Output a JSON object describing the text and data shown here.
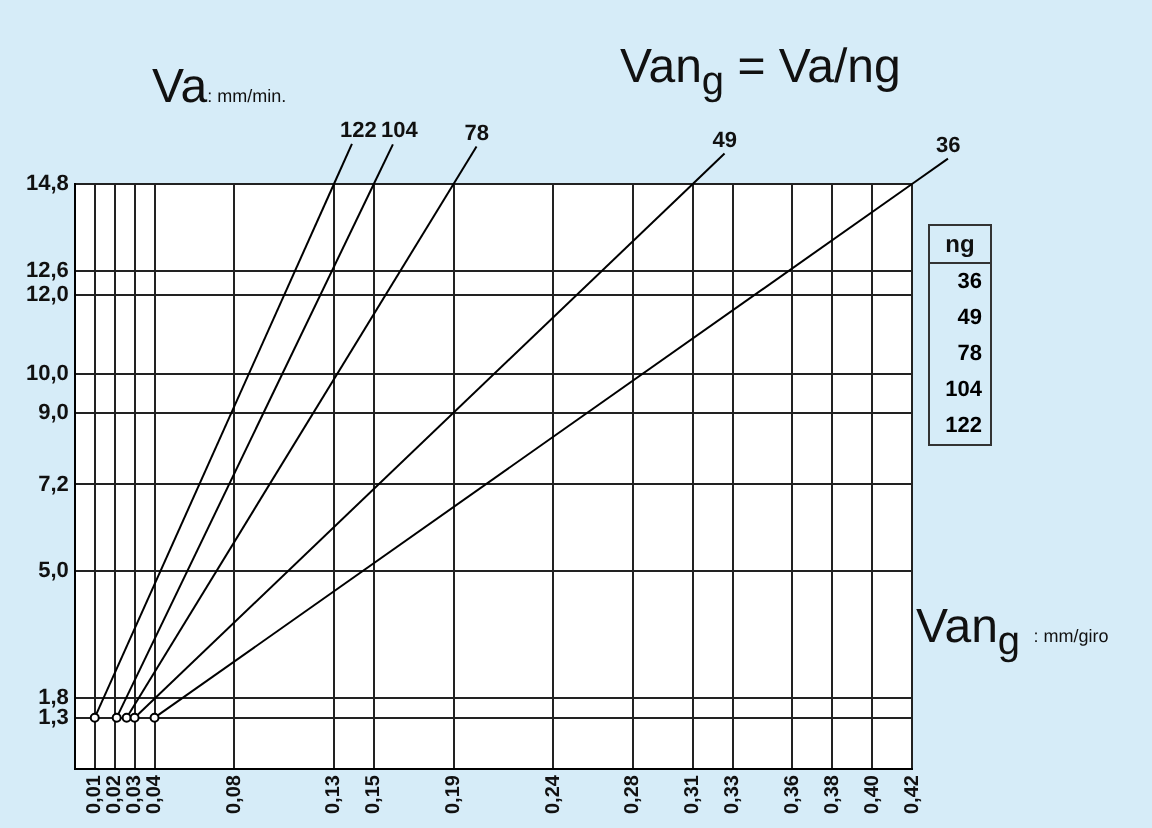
{
  "chart_data": {
    "type": "line",
    "title": "Van$_{g}$ = Va/ng",
    "xlabel": "Van$_{g}$ : mm/giro",
    "ylabel": "Va: mm/min.",
    "legend_title": "ng",
    "legend": "right",
    "grid": true,
    "marker": "circle",
    "line_style": "solid",
    "xlim": [
      0,
      0.42
    ],
    "ylim": [
      0,
      14.8
    ],
    "xticks": [
      {
        "value": 0.01,
        "label": "0,01"
      },
      {
        "value": 0.02,
        "label": "0,02"
      },
      {
        "value": 0.03,
        "label": "0,03"
      },
      {
        "value": 0.04,
        "label": "0,04"
      },
      {
        "value": 0.08,
        "label": "0,08"
      },
      {
        "value": 0.13,
        "label": "0,13"
      },
      {
        "value": 0.15,
        "label": "0,15"
      },
      {
        "value": 0.19,
        "label": "0,19"
      },
      {
        "value": 0.24,
        "label": "0,24"
      },
      {
        "value": 0.28,
        "label": "0,28"
      },
      {
        "value": 0.31,
        "label": "0,31"
      },
      {
        "value": 0.33,
        "label": "0,33"
      },
      {
        "value": 0.36,
        "label": "0,36"
      },
      {
        "value": 0.38,
        "label": "0,38"
      },
      {
        "value": 0.4,
        "label": "0,40"
      },
      {
        "value": 0.42,
        "label": "0,42"
      }
    ],
    "yticks": [
      {
        "value": 1.3,
        "label": "1,3"
      },
      {
        "value": 1.8,
        "label": "1,8"
      },
      {
        "value": 5.0,
        "label": "5,0"
      },
      {
        "value": 7.2,
        "label": "7,2"
      },
      {
        "value": 9.0,
        "label": "9,0"
      },
      {
        "value": 10.0,
        "label": "10,0"
      },
      {
        "value": 12.0,
        "label": "12,0"
      },
      {
        "value": 12.6,
        "label": "12,6"
      },
      {
        "value": 14.8,
        "label": "14,8"
      }
    ],
    "series": [
      {
        "name": "36",
        "color": "#000000",
        "x": [
          0.04,
          0.42
        ],
        "values": [
          1.3,
          14.8
        ]
      },
      {
        "name": "49",
        "color": "#000000",
        "x": [
          0.03,
          0.31
        ],
        "values": [
          1.3,
          14.8
        ]
      },
      {
        "name": "78",
        "color": "#000000",
        "x": [
          0.026,
          0.19
        ],
        "values": [
          1.3,
          14.8
        ]
      },
      {
        "name": "104",
        "color": "#000000",
        "x": [
          0.021,
          0.15
        ],
        "values": [
          1.3,
          14.8
        ]
      },
      {
        "name": "122",
        "color": "#000000",
        "x": [
          0.01,
          0.13
        ],
        "values": [
          1.3,
          14.8
        ]
      }
    ]
  }
}
